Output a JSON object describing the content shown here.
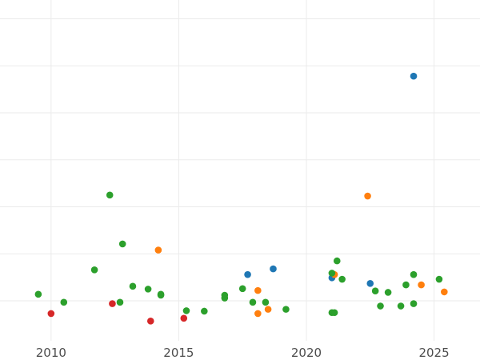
{
  "chart_data": {
    "type": "scatter",
    "title": "",
    "xlabel": "",
    "ylabel": "",
    "grid": true,
    "legend": "none",
    "xlim": [
      2008.0,
      2026.8
    ],
    "ylim": [
      -0.85,
      6.4
    ],
    "x_ticks": [
      2010,
      2015,
      2020,
      2025
    ],
    "x_tick_labels": [
      "2010",
      "2015",
      "2020",
      "2025"
    ],
    "y_gridlines": [
      0,
      1,
      2,
      3,
      4,
      5,
      6
    ],
    "y_tick_labels": [],
    "series": [
      {
        "color": "#1f77b4",
        "points": [
          {
            "x": 2017.7,
            "y": 0.56
          },
          {
            "x": 2018.7,
            "y": 0.68
          },
          {
            "x": 2021.0,
            "y": 0.49
          },
          {
            "x": 2022.5,
            "y": 0.37
          },
          {
            "x": 2024.2,
            "y": 4.78
          }
        ]
      },
      {
        "color": "#ff7f0e",
        "points": [
          {
            "x": 2014.2,
            "y": 1.08
          },
          {
            "x": 2018.1,
            "y": 0.22
          },
          {
            "x": 2018.1,
            "y": -0.27
          },
          {
            "x": 2018.5,
            "y": -0.18
          },
          {
            "x": 2021.1,
            "y": 0.56
          },
          {
            "x": 2022.4,
            "y": 2.23
          },
          {
            "x": 2024.5,
            "y": 0.34
          },
          {
            "x": 2025.4,
            "y": 0.19
          }
        ]
      },
      {
        "color": "#2ca02c",
        "points": [
          {
            "x": 2009.5,
            "y": 0.14
          },
          {
            "x": 2010.5,
            "y": -0.03
          },
          {
            "x": 2011.7,
            "y": 0.66
          },
          {
            "x": 2012.3,
            "y": 2.25
          },
          {
            "x": 2012.7,
            "y": -0.03
          },
          {
            "x": 2012.8,
            "y": 1.21
          },
          {
            "x": 2013.2,
            "y": 0.31
          },
          {
            "x": 2013.8,
            "y": 0.25
          },
          {
            "x": 2014.3,
            "y": 0.14
          },
          {
            "x": 2014.3,
            "y": 0.12
          },
          {
            "x": 2015.3,
            "y": -0.21
          },
          {
            "x": 2016.0,
            "y": -0.22
          },
          {
            "x": 2016.8,
            "y": 0.12
          },
          {
            "x": 2016.8,
            "y": 0.06
          },
          {
            "x": 2017.5,
            "y": 0.26
          },
          {
            "x": 2017.9,
            "y": -0.03
          },
          {
            "x": 2018.4,
            "y": -0.03
          },
          {
            "x": 2019.2,
            "y": -0.18
          },
          {
            "x": 2021.0,
            "y": 0.59
          },
          {
            "x": 2021.0,
            "y": -0.25
          },
          {
            "x": 2021.1,
            "y": -0.25
          },
          {
            "x": 2021.2,
            "y": 0.85
          },
          {
            "x": 2021.4,
            "y": 0.46
          },
          {
            "x": 2022.7,
            "y": 0.21
          },
          {
            "x": 2022.9,
            "y": -0.11
          },
          {
            "x": 2023.2,
            "y": 0.18
          },
          {
            "x": 2023.7,
            "y": -0.11
          },
          {
            "x": 2023.9,
            "y": 0.34
          },
          {
            "x": 2024.2,
            "y": 0.56
          },
          {
            "x": 2024.2,
            "y": -0.06
          },
          {
            "x": 2025.2,
            "y": 0.46
          }
        ]
      },
      {
        "color": "#d62728",
        "points": [
          {
            "x": 2010.0,
            "y": -0.27
          },
          {
            "x": 2012.4,
            "y": -0.06
          },
          {
            "x": 2013.9,
            "y": -0.43
          },
          {
            "x": 2015.2,
            "y": -0.37
          }
        ]
      }
    ]
  }
}
